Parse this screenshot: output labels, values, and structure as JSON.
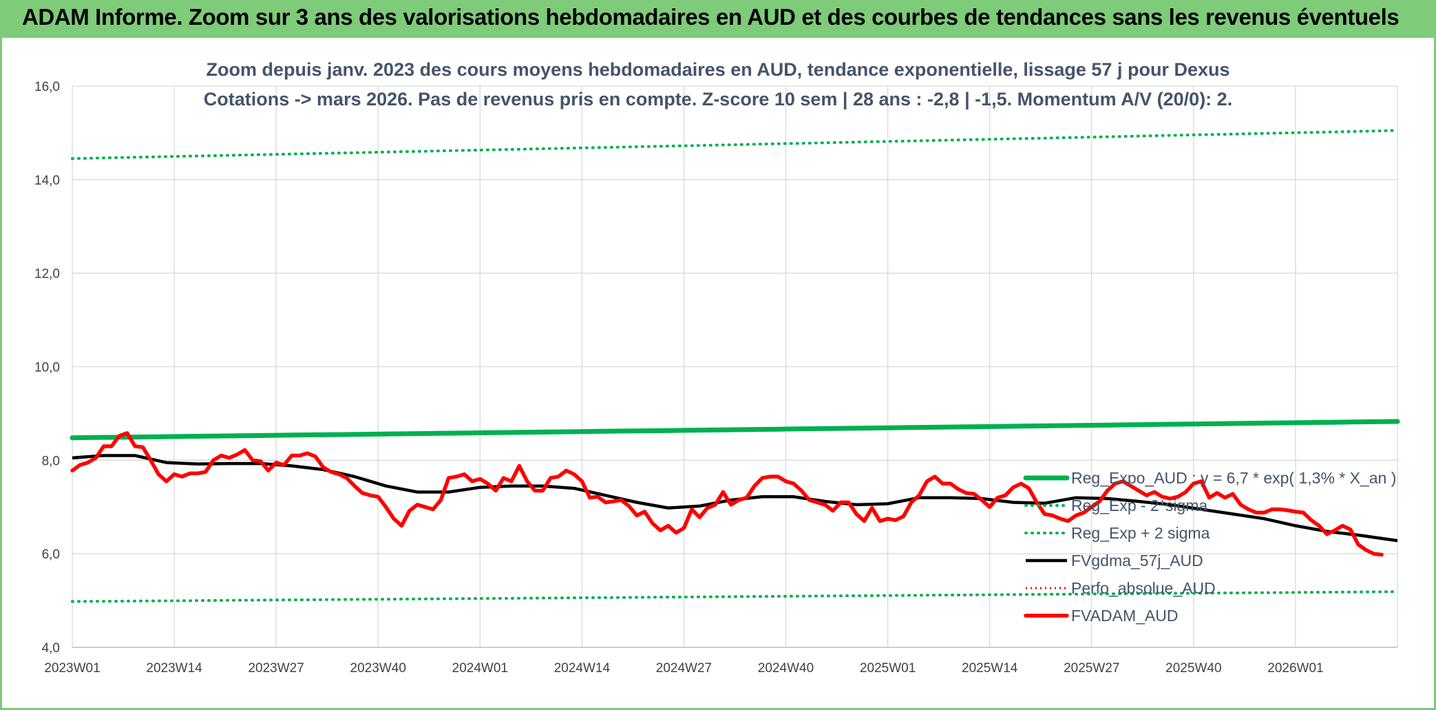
{
  "header": {
    "title": "ADAM Informe. Zoom sur 3 ans des valorisations hebdomadaires en AUD et des courbes de tendances sans les revenus éventuels"
  },
  "chart_data": {
    "type": "line",
    "subtitle_line1": "Zoom depuis janv. 2023 des cours moyens hebdomadaires en AUD, tendance exponentielle, lissage 57 j pour Dexus",
    "subtitle_line2": "Cotations -> mars 2026. Pas de revenus pris en compte. Z-score 10 sem | 28 ans : -2,8 | -1,5. Momentum A/V (20/0): 2.",
    "ylim": [
      4,
      16
    ],
    "yticks": [
      "4,0",
      "6,0",
      "8,0",
      "10,0",
      "12,0",
      "14,0",
      "16,0"
    ],
    "x_categories": [
      "2023W01",
      "2023W14",
      "2023W27",
      "2023W40",
      "2024W01",
      "2024W14",
      "2024W27",
      "2024W40",
      "2025W01",
      "2025W14",
      "2025W27",
      "2025W40",
      "2026W01"
    ],
    "x_range_weeks": [
      0,
      169
    ],
    "grid": true,
    "legend_position": "right",
    "colors": {
      "reg_expo": "#00b050",
      "reg_band": "#00b050",
      "smooth": "#000000",
      "perfo": "#ff0000",
      "price": "#ff0000",
      "grid": "#d9d9d9"
    },
    "series": [
      {
        "name": "Reg_Expo_AUD : y = 6,7 * exp( 1,3% *  X_an )",
        "style": "thick-green",
        "start": 8.48,
        "end": 8.83
      },
      {
        "name": "Reg_Exp - 2*sigma",
        "style": "dotted-green",
        "start": 4.98,
        "end": 5.19
      },
      {
        "name": "Reg_Exp + 2 sigma",
        "style": "dotted-green",
        "start": 14.45,
        "end": 15.05
      },
      {
        "name": "FVgdma_57j_AUD",
        "style": "black",
        "points": [
          [
            0,
            8.05
          ],
          [
            4,
            8.1
          ],
          [
            8,
            8.1
          ],
          [
            12,
            7.95
          ],
          [
            16,
            7.92
          ],
          [
            20,
            7.93
          ],
          [
            24,
            7.93
          ],
          [
            28,
            7.88
          ],
          [
            32,
            7.8
          ],
          [
            36,
            7.65
          ],
          [
            40,
            7.45
          ],
          [
            44,
            7.32
          ],
          [
            48,
            7.32
          ],
          [
            52,
            7.42
          ],
          [
            56,
            7.45
          ],
          [
            60,
            7.45
          ],
          [
            64,
            7.4
          ],
          [
            68,
            7.25
          ],
          [
            72,
            7.1
          ],
          [
            76,
            6.98
          ],
          [
            80,
            7.02
          ],
          [
            84,
            7.15
          ],
          [
            88,
            7.22
          ],
          [
            92,
            7.22
          ],
          [
            96,
            7.12
          ],
          [
            100,
            7.05
          ],
          [
            104,
            7.07
          ],
          [
            108,
            7.2
          ],
          [
            112,
            7.2
          ],
          [
            116,
            7.18
          ],
          [
            120,
            7.1
          ],
          [
            124,
            7.08
          ],
          [
            128,
            7.2
          ],
          [
            132,
            7.18
          ],
          [
            136,
            7.12
          ],
          [
            140,
            7.05
          ],
          [
            144,
            6.95
          ],
          [
            148,
            6.85
          ],
          [
            152,
            6.75
          ],
          [
            156,
            6.6
          ],
          [
            160,
            6.48
          ],
          [
            164,
            6.4
          ],
          [
            169,
            6.28
          ]
        ]
      },
      {
        "name": "Perfo_absolue_AUD",
        "style": "dotted-red",
        "points": []
      },
      {
        "name": "FVADAM_AUD",
        "style": "thick-red",
        "points": [
          [
            0,
            7.78
          ],
          [
            1,
            7.9
          ],
          [
            2,
            7.95
          ],
          [
            3,
            8.05
          ],
          [
            4,
            8.3
          ],
          [
            5,
            8.3
          ],
          [
            6,
            8.52
          ],
          [
            7,
            8.58
          ],
          [
            8,
            8.3
          ],
          [
            9,
            8.28
          ],
          [
            10,
            8.0
          ],
          [
            11,
            7.7
          ],
          [
            12,
            7.55
          ],
          [
            13,
            7.7
          ],
          [
            14,
            7.65
          ],
          [
            15,
            7.72
          ],
          [
            16,
            7.72
          ],
          [
            17,
            7.75
          ],
          [
            18,
            8.0
          ],
          [
            19,
            8.1
          ],
          [
            20,
            8.05
          ],
          [
            21,
            8.12
          ],
          [
            22,
            8.22
          ],
          [
            23,
            8.0
          ],
          [
            24,
            7.98
          ],
          [
            25,
            7.78
          ],
          [
            26,
            7.95
          ],
          [
            27,
            7.9
          ],
          [
            28,
            8.1
          ],
          [
            29,
            8.1
          ],
          [
            30,
            8.15
          ],
          [
            31,
            8.08
          ],
          [
            32,
            7.85
          ],
          [
            33,
            7.75
          ],
          [
            34,
            7.7
          ],
          [
            35,
            7.62
          ],
          [
            36,
            7.45
          ],
          [
            37,
            7.3
          ],
          [
            38,
            7.25
          ],
          [
            39,
            7.22
          ],
          [
            40,
            7.0
          ],
          [
            41,
            6.75
          ],
          [
            42,
            6.6
          ],
          [
            43,
            6.92
          ],
          [
            44,
            7.05
          ],
          [
            45,
            7.0
          ],
          [
            46,
            6.95
          ],
          [
            47,
            7.15
          ],
          [
            48,
            7.62
          ],
          [
            49,
            7.65
          ],
          [
            50,
            7.7
          ],
          [
            51,
            7.55
          ],
          [
            52,
            7.6
          ],
          [
            53,
            7.5
          ],
          [
            54,
            7.35
          ],
          [
            55,
            7.62
          ],
          [
            56,
            7.55
          ],
          [
            57,
            7.88
          ],
          [
            58,
            7.55
          ],
          [
            59,
            7.35
          ],
          [
            60,
            7.35
          ],
          [
            61,
            7.62
          ],
          [
            62,
            7.65
          ],
          [
            63,
            7.78
          ],
          [
            64,
            7.7
          ],
          [
            65,
            7.55
          ],
          [
            66,
            7.2
          ],
          [
            67,
            7.22
          ],
          [
            68,
            7.1
          ],
          [
            69,
            7.12
          ],
          [
            70,
            7.15
          ],
          [
            71,
            7.02
          ],
          [
            72,
            6.82
          ],
          [
            73,
            6.9
          ],
          [
            74,
            6.65
          ],
          [
            75,
            6.5
          ],
          [
            76,
            6.6
          ],
          [
            77,
            6.45
          ],
          [
            78,
            6.55
          ],
          [
            79,
            6.95
          ],
          [
            80,
            6.78
          ],
          [
            81,
            6.98
          ],
          [
            82,
            7.05
          ],
          [
            83,
            7.32
          ],
          [
            84,
            7.05
          ],
          [
            85,
            7.15
          ],
          [
            86,
            7.2
          ],
          [
            87,
            7.45
          ],
          [
            88,
            7.62
          ],
          [
            89,
            7.65
          ],
          [
            90,
            7.65
          ],
          [
            91,
            7.55
          ],
          [
            92,
            7.5
          ],
          [
            93,
            7.35
          ],
          [
            94,
            7.15
          ],
          [
            95,
            7.1
          ],
          [
            96,
            7.05
          ],
          [
            97,
            6.92
          ],
          [
            98,
            7.1
          ],
          [
            99,
            7.1
          ],
          [
            100,
            6.85
          ],
          [
            101,
            6.7
          ],
          [
            102,
            6.98
          ],
          [
            103,
            6.7
          ],
          [
            104,
            6.75
          ],
          [
            105,
            6.72
          ],
          [
            106,
            6.8
          ],
          [
            107,
            7.1
          ],
          [
            108,
            7.25
          ],
          [
            109,
            7.55
          ],
          [
            110,
            7.65
          ],
          [
            111,
            7.5
          ],
          [
            112,
            7.5
          ],
          [
            113,
            7.38
          ],
          [
            114,
            7.3
          ],
          [
            115,
            7.28
          ],
          [
            116,
            7.15
          ],
          [
            117,
            7.0
          ],
          [
            118,
            7.2
          ],
          [
            119,
            7.25
          ],
          [
            120,
            7.42
          ],
          [
            121,
            7.5
          ],
          [
            122,
            7.4
          ],
          [
            123,
            7.1
          ],
          [
            124,
            6.85
          ],
          [
            125,
            6.82
          ],
          [
            126,
            6.75
          ],
          [
            127,
            6.7
          ],
          [
            128,
            6.82
          ],
          [
            129,
            6.88
          ],
          [
            130,
            7.0
          ],
          [
            131,
            7.12
          ],
          [
            132,
            7.35
          ],
          [
            133,
            7.5
          ],
          [
            134,
            7.55
          ],
          [
            135,
            7.45
          ],
          [
            136,
            7.35
          ],
          [
            137,
            7.25
          ],
          [
            138,
            7.32
          ],
          [
            139,
            7.22
          ],
          [
            140,
            7.18
          ],
          [
            141,
            7.22
          ],
          [
            142,
            7.32
          ],
          [
            143,
            7.5
          ],
          [
            144,
            7.55
          ],
          [
            145,
            7.2
          ],
          [
            146,
            7.3
          ],
          [
            147,
            7.2
          ],
          [
            148,
            7.28
          ],
          [
            149,
            7.05
          ],
          [
            150,
            6.95
          ],
          [
            151,
            6.88
          ],
          [
            152,
            6.88
          ],
          [
            153,
            6.95
          ],
          [
            154,
            6.95
          ],
          [
            155,
            6.93
          ],
          [
            156,
            6.9
          ],
          [
            157,
            6.88
          ],
          [
            158,
            6.72
          ],
          [
            159,
            6.6
          ],
          [
            160,
            6.42
          ],
          [
            161,
            6.5
          ],
          [
            162,
            6.6
          ],
          [
            163,
            6.52
          ],
          [
            164,
            6.2
          ],
          [
            165,
            6.08
          ],
          [
            166,
            6.0
          ],
          [
            167,
            5.98
          ]
        ]
      }
    ]
  }
}
